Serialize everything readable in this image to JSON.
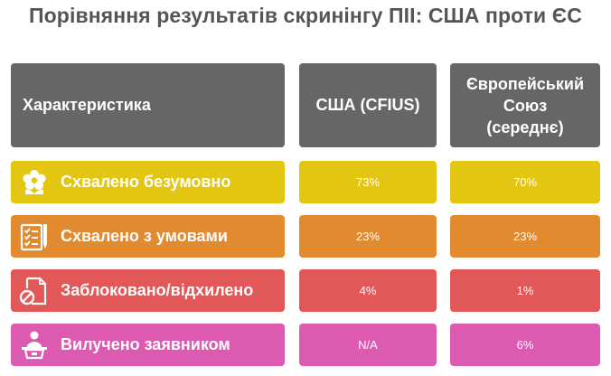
{
  "title": "Порівняння результатів скринінгу ПІІ: США проти ЄС",
  "header": {
    "col1": "Характеристика",
    "col2": "США (CFIUS)",
    "col3_line1": "Європейський",
    "col3_line2": "Союз",
    "col3_line3": "(середнє)"
  },
  "rows": [
    {
      "label": "Схвалено безумовно",
      "us": "73%",
      "eu": "70%",
      "icon": "flower-icon",
      "color": "#e3c611"
    },
    {
      "label": "Схвалено з умовами",
      "us": "23%",
      "eu": "23%",
      "icon": "checklist-icon",
      "color": "#e28a2f"
    },
    {
      "label": "Заблоковано/відхилено",
      "us": "4%",
      "eu": "1%",
      "icon": "blocked-document-icon",
      "color": "#e25757"
    },
    {
      "label": "Вилучено заявником",
      "us": "N/A",
      "eu": "6%",
      "icon": "person-podium-icon",
      "color": "#dd5ab1"
    }
  ],
  "colors": {
    "header": "#666666",
    "title": "#555555"
  }
}
